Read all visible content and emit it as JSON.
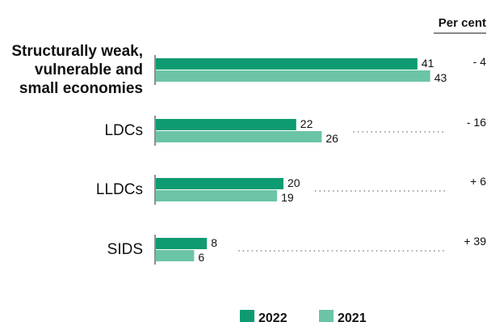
{
  "chart_data": {
    "type": "bar",
    "orientation": "horizontal",
    "unit_label": "Per cent",
    "categories": [
      "Structurally weak, vulnerable and small economies",
      "LDCs",
      "LLDCs",
      "SIDS"
    ],
    "series": [
      {
        "name": "2022",
        "color": "#0f9b72",
        "values": [
          41,
          22,
          20,
          8
        ]
      },
      {
        "name": "2021",
        "color": "#6cc4a7",
        "values": [
          43,
          26,
          19,
          6
        ]
      }
    ],
    "changes": [
      "- 4",
      "- 16",
      "+ 6",
      "+ 39"
    ],
    "xlim": [
      0,
      50
    ],
    "legend_position": "bottom-center",
    "grid": false
  }
}
